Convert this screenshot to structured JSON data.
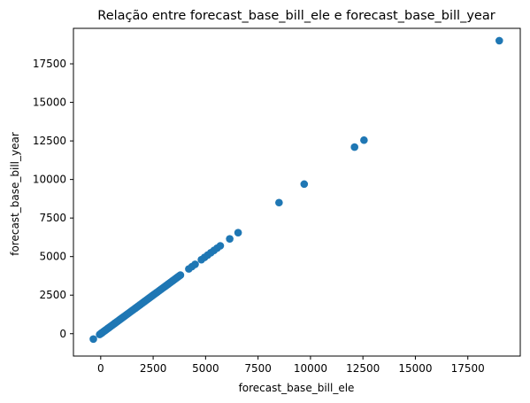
{
  "chart_data": {
    "type": "scatter",
    "title": "Relação entre forecast_base_bill_ele e forecast_base_bill_year",
    "xlabel": "forecast_base_bill_ele",
    "ylabel": "forecast_base_bill_year",
    "xlim": [
      -1300,
      20000
    ],
    "ylim": [
      -1450,
      19800
    ],
    "xticks": [
      0,
      2500,
      5000,
      7500,
      10000,
      12500,
      15000,
      17500
    ],
    "yticks": [
      0,
      2500,
      5000,
      7500,
      10000,
      12500,
      15000,
      17500
    ],
    "grid": false,
    "marker_color": "#1f77b4",
    "series": [
      {
        "x": [
          -350,
          -50,
          0,
          20,
          40,
          60,
          80,
          100,
          130,
          160,
          190,
          220,
          250,
          280,
          310,
          340,
          370,
          400,
          440,
          480,
          520,
          560,
          600,
          640,
          680,
          720,
          760,
          800,
          850,
          900,
          950,
          1000,
          1050,
          1100,
          1150,
          1200,
          1250,
          1300,
          1350,
          1400,
          1450,
          1500,
          1550,
          1600,
          1650,
          1700,
          1750,
          1800,
          1850,
          1900,
          1950,
          2000,
          2050,
          2100,
          2150,
          2200,
          2250,
          2300,
          2350,
          2400,
          2450,
          2500,
          2550,
          2600,
          2650,
          2700,
          2750,
          2800,
          2850,
          2900,
          2950,
          3000,
          3050,
          3100,
          3150,
          3200,
          3250,
          3300,
          3350,
          3400,
          3450,
          3500,
          3550,
          3600,
          3650,
          3700,
          3750,
          3800,
          4200,
          4350,
          4500,
          4800,
          4950,
          5100,
          5250,
          5400,
          5550,
          5700,
          6150,
          6550,
          8500,
          9700,
          12100,
          12550,
          19000
        ],
        "y": [
          -350,
          -50,
          0,
          20,
          40,
          60,
          80,
          100,
          130,
          160,
          190,
          220,
          250,
          280,
          310,
          340,
          370,
          400,
          440,
          480,
          520,
          560,
          600,
          640,
          680,
          720,
          760,
          800,
          850,
          900,
          950,
          1000,
          1050,
          1100,
          1150,
          1200,
          1250,
          1300,
          1350,
          1400,
          1450,
          1500,
          1550,
          1600,
          1650,
          1700,
          1750,
          1800,
          1850,
          1900,
          1950,
          2000,
          2050,
          2100,
          2150,
          2200,
          2250,
          2300,
          2350,
          2400,
          2450,
          2500,
          2550,
          2600,
          2650,
          2700,
          2750,
          2800,
          2850,
          2900,
          2950,
          3000,
          3050,
          3100,
          3150,
          3200,
          3250,
          3300,
          3350,
          3400,
          3450,
          3500,
          3550,
          3600,
          3650,
          3700,
          3750,
          3800,
          4200,
          4350,
          4500,
          4800,
          4950,
          5100,
          5250,
          5400,
          5550,
          5700,
          6150,
          6550,
          8500,
          9700,
          12100,
          12550,
          19000
        ]
      }
    ]
  }
}
